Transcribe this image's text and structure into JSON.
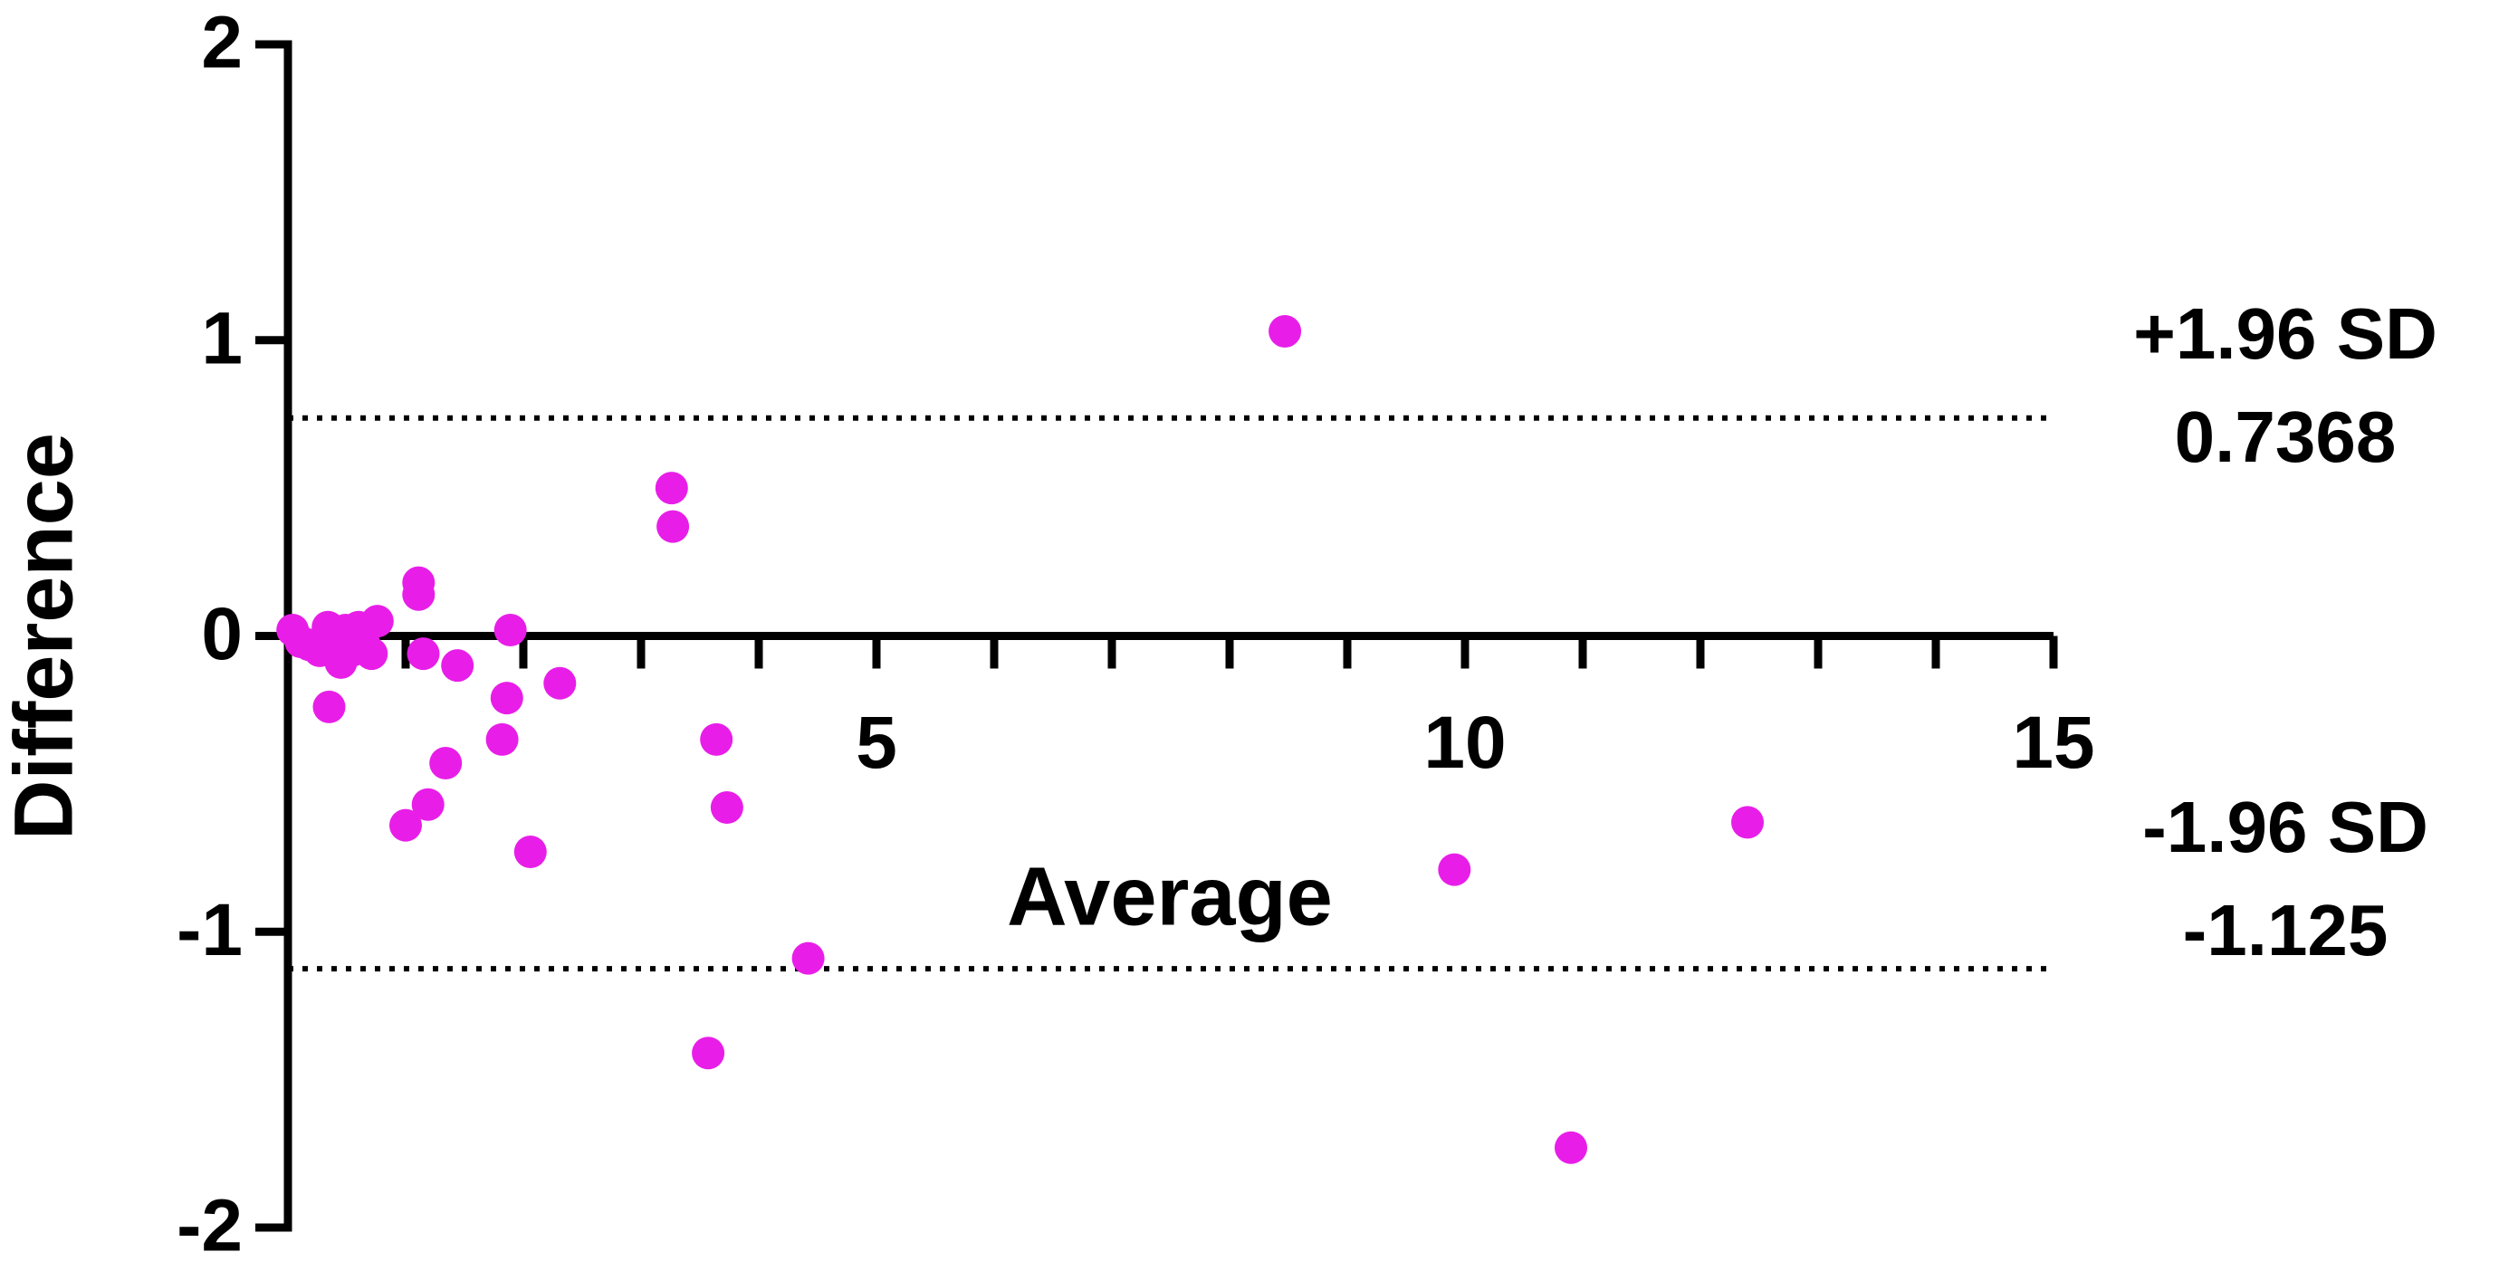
{
  "chart_data": {
    "type": "scatter",
    "xlabel": "Average",
    "ylabel": "Difference",
    "xlim": [
      0,
      15
    ],
    "ylim": [
      -2,
      2
    ],
    "xticks": [
      5,
      10,
      15
    ],
    "x_minor_ticks": [
      1,
      2,
      3,
      4,
      6,
      7,
      8,
      9,
      11,
      12,
      13,
      14
    ],
    "yticks": [
      -2,
      -1,
      0,
      1,
      2
    ],
    "color": "#e81ee8",
    "x": [
      0.04,
      0.11,
      0.18,
      0.27,
      0.34,
      0.35,
      0.41,
      0.45,
      0.49,
      0.54,
      0.6,
      0.65,
      0.71,
      0.76,
      1.0,
      1.11,
      1.11,
      1.15,
      1.19,
      1.34,
      1.44,
      1.82,
      1.86,
      1.89,
      2.06,
      2.31,
      3.26,
      3.27,
      3.57,
      3.64,
      3.73,
      4.42,
      8.47,
      9.91,
      10.9,
      12.4
    ],
    "values": [
      0.02,
      -0.02,
      -0.03,
      -0.05,
      0.03,
      -0.24,
      -0.04,
      -0.09,
      0.02,
      -0.05,
      0.03,
      -0.03,
      -0.06,
      0.05,
      -0.64,
      0.18,
      0.14,
      -0.06,
      -0.57,
      -0.43,
      -0.1,
      -0.35,
      -0.21,
      0.02,
      -0.73,
      -0.16,
      0.5,
      0.37,
      -1.41,
      -0.35,
      -0.58,
      -1.09,
      1.03,
      -0.79,
      -1.73,
      -0.63
    ],
    "hlines": [
      {
        "label": "+1.96 SD",
        "value": 0.7368
      },
      {
        "label": "-1.96 SD",
        "value": -1.125
      }
    ]
  }
}
